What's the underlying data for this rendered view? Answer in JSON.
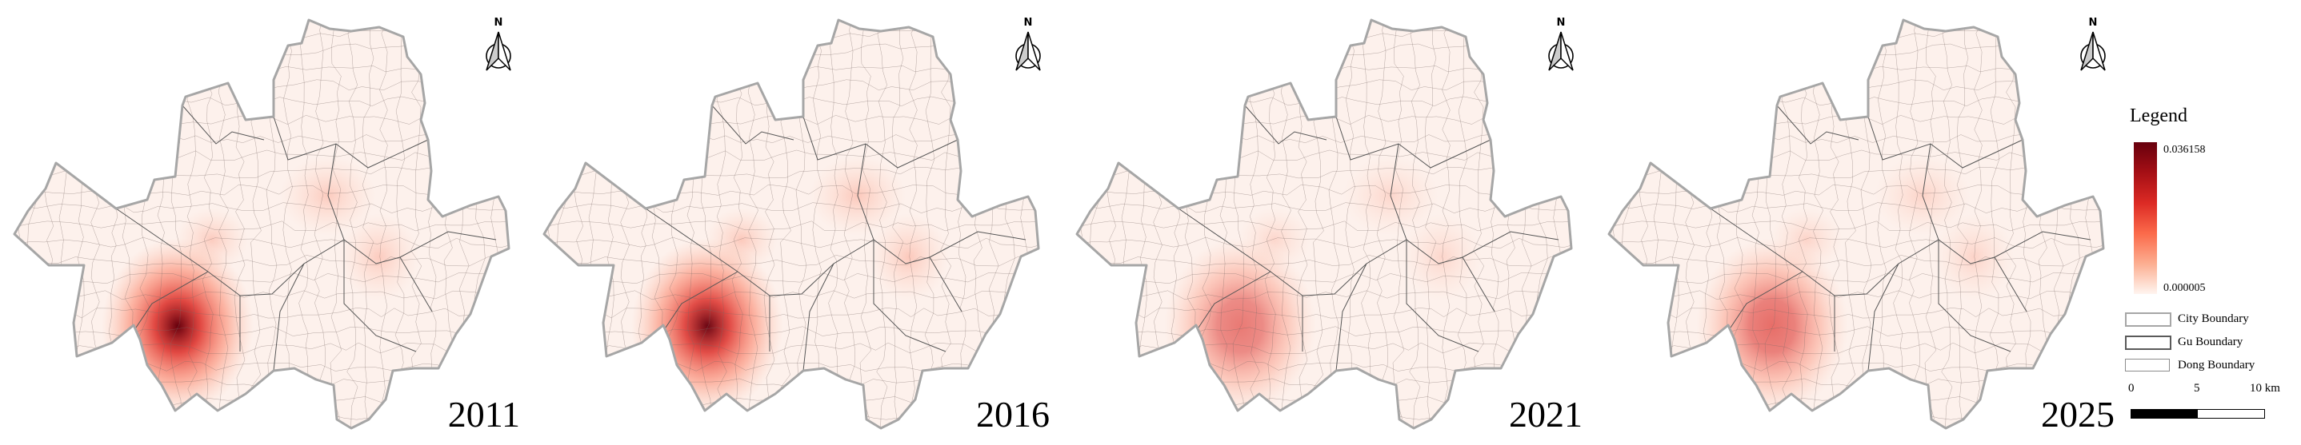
{
  "panels": [
    {
      "year": "2011",
      "peak_level": 1.0,
      "secondary_level": 0.28
    },
    {
      "year": "2016",
      "peak_level": 0.97,
      "secondary_level": 0.3
    },
    {
      "year": "2021",
      "peak_level": 0.6,
      "secondary_level": 0.2
    },
    {
      "year": "2025",
      "peak_level": 0.66,
      "secondary_level": 0.22
    }
  ],
  "north_arrow": {
    "label": "N"
  },
  "legend": {
    "title": "Legend",
    "max_value": "0.036158",
    "min_value": "0.000005",
    "ramp_colors": [
      "#67000d",
      "#a50f15",
      "#dc2a24",
      "#fb6a4a",
      "#fcae91",
      "#fff5f0"
    ],
    "items": [
      {
        "label": "City Boundary",
        "stroke": "#a6a6a6"
      },
      {
        "label": "Gu Boundary",
        "stroke": "#5a5a5a"
      },
      {
        "label": "Dong Boundary",
        "stroke": "#8c8c8c"
      }
    ]
  },
  "scale_bar": {
    "labels": [
      "0",
      "5",
      "10 km"
    ]
  },
  "colors": {
    "map_fill": "#fdf1ec",
    "city_boundary": "#a6a6a6"
  }
}
